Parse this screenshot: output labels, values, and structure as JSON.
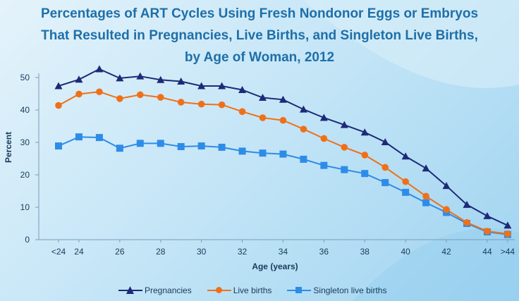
{
  "title_lines": [
    "Percentages of ART Cycles Using Fresh Nondonor Eggs or Embryos",
    "That Resulted in Pregnancies, Live Births, and Singleton Live Births,",
    "by Age of Woman,  2012"
  ],
  "chart_data": {
    "type": "line",
    "xlabel": "Age (years)",
    "ylabel": "Percent",
    "ylim": [
      0,
      50
    ],
    "yticks": [
      0,
      10,
      20,
      30,
      40,
      50
    ],
    "categories": [
      "<24",
      "24",
      "25",
      "26",
      "27",
      "28",
      "29",
      "30",
      "31",
      "32",
      "33",
      "34",
      "35",
      "36",
      "37",
      "38",
      "39",
      "40",
      "41",
      "42",
      "43",
      "44",
      ">44"
    ],
    "x_tick_labels": {
      "<24": "<24",
      "24": "24",
      "26": "26",
      "28": "28",
      "30": "30",
      "32": "32",
      "34": "34",
      "36": "36",
      "38": "38",
      "40": "40",
      "42": "42",
      "44": "44",
      ">44": ">44"
    },
    "grid": false,
    "legend_position": "bottom",
    "series": [
      {
        "name": "Pregnancies",
        "color": "#1c2a78",
        "marker": "triangle",
        "values": [
          47.4,
          49.4,
          52.6,
          49.8,
          50.4,
          49.3,
          48.8,
          47.4,
          47.4,
          46.2,
          43.8,
          43.2,
          40.2,
          37.6,
          35.4,
          33.1,
          30.1,
          25.7,
          22.0,
          16.6,
          10.8,
          7.3,
          4.4
        ]
      },
      {
        "name": "Live births",
        "color": "#f07018",
        "marker": "circle",
        "values": [
          41.4,
          44.9,
          45.6,
          43.5,
          44.7,
          43.9,
          42.4,
          41.8,
          41.6,
          39.5,
          37.6,
          36.8,
          34.1,
          31.2,
          28.5,
          26.1,
          22.3,
          17.9,
          13.4,
          9.3,
          5.3,
          2.6,
          1.8
        ]
      },
      {
        "name": "Singleton live births",
        "color": "#2e8ce8",
        "marker": "square",
        "values": [
          28.9,
          31.7,
          31.5,
          28.2,
          29.7,
          29.7,
          28.7,
          28.9,
          28.5,
          27.3,
          26.7,
          26.4,
          24.8,
          22.9,
          21.6,
          20.4,
          17.6,
          14.6,
          11.4,
          8.4,
          5.0,
          2.4,
          1.6
        ]
      }
    ]
  }
}
